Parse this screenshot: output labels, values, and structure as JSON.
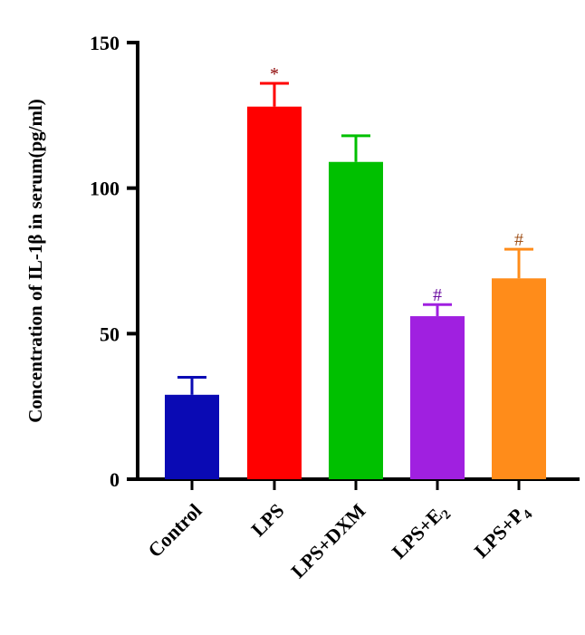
{
  "chart_data": {
    "type": "bar",
    "title": "",
    "xlabel": "",
    "ylabel": "Concentration of IL-1β in serum(pg/ml)",
    "ylim": [
      0,
      150
    ],
    "yticks": [
      "0",
      "50",
      "100",
      "150"
    ],
    "grid": false,
    "categories": [
      {
        "base": "Control",
        "sub": ""
      },
      {
        "base": "LPS",
        "sub": ""
      },
      {
        "base": "LPS+DXM",
        "sub": ""
      },
      {
        "base": "LPS+E",
        "sub": "2"
      },
      {
        "base": "LPS+P",
        "sub": "4"
      }
    ],
    "values": [
      29,
      128,
      109,
      56,
      69
    ],
    "errors": [
      6,
      8,
      9,
      4,
      10
    ],
    "annotations": [
      "",
      "*",
      "",
      "#",
      "#"
    ],
    "colors": [
      "#0a0ab4",
      "#ff0000",
      "#00c000",
      "#a020e0",
      "#ff8c1a"
    ],
    "error_colors": [
      "#0a0ab4",
      "#ff0000",
      "#00c000",
      "#a020e0",
      "#ff8c1a"
    ]
  }
}
